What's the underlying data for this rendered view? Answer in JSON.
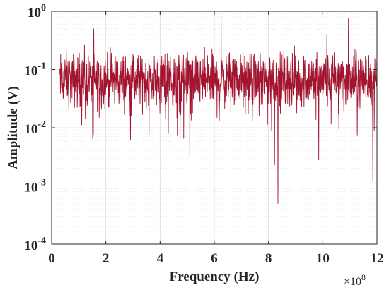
{
  "chart_data": {
    "type": "line",
    "xlabel": "Frequency (Hz)",
    "ylabel": "Amplitude (V)",
    "x_multiplier_label": "×10",
    "x_multiplier_exponent": "8",
    "xlim": [
      0,
      12
    ],
    "ylim": [
      0.0001,
      1
    ],
    "yscale": "log",
    "grid": "on",
    "x_ticks": [
      0,
      2,
      4,
      6,
      8,
      10,
      12
    ],
    "x_tick_labels": [
      "0",
      "2",
      "4",
      "6",
      "8",
      "10",
      "12"
    ],
    "y_ticks": [
      {
        "value": 1,
        "base": "10",
        "exp": "0"
      },
      {
        "value": 0.1,
        "base": "10",
        "exp": "-1"
      },
      {
        "value": 0.01,
        "base": "10",
        "exp": "-2"
      },
      {
        "value": 0.001,
        "base": "10",
        "exp": "-3"
      },
      {
        "value": 0.0001,
        "base": "10",
        "exp": "-4"
      }
    ],
    "series": [
      {
        "color": "#a2142f",
        "x_start": 0.3,
        "x_end": 12,
        "baseline": 0.065,
        "spikes": [
          {
            "x": 1.55,
            "y": 0.5
          },
          {
            "x": 2.35,
            "y": 0.17
          },
          {
            "x": 6.25,
            "y": 1.0
          },
          {
            "x": 10.15,
            "y": 0.4
          },
          {
            "x": 10.95,
            "y": 0.75
          },
          {
            "x": 8.05,
            "y": 0.16
          },
          {
            "x": 4.3,
            "y": 0.15
          }
        ],
        "dips": [
          {
            "x": 1.75,
            "y": 0.015
          },
          {
            "x": 4.3,
            "y": 0.008
          },
          {
            "x": 5.1,
            "y": 0.003
          },
          {
            "x": 5.2,
            "y": 0.018
          },
          {
            "x": 6.1,
            "y": 0.015
          },
          {
            "x": 7.4,
            "y": 0.013
          },
          {
            "x": 8.22,
            "y": 0.0023
          },
          {
            "x": 8.35,
            "y": 0.0005
          },
          {
            "x": 9.85,
            "y": 0.0028
          },
          {
            "x": 11.85,
            "y": 0.0012
          },
          {
            "x": 11.9,
            "y": 0.009
          }
        ]
      }
    ]
  }
}
